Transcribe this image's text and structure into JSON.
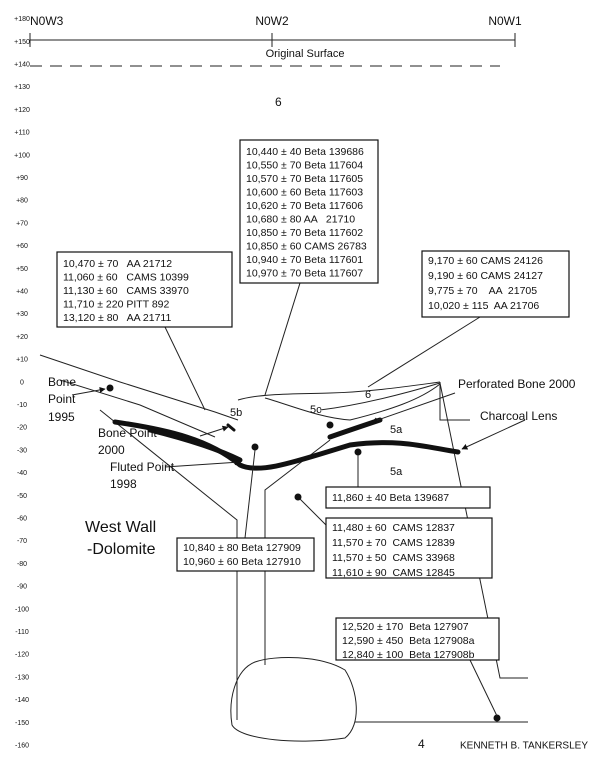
{
  "grid_labels": [
    "N0W3",
    "N0W2",
    "N0W1"
  ],
  "original_surface": "Original Surface",
  "depth_scale": [
    "+180",
    "+150",
    "+140",
    "+130",
    "+120",
    "+110",
    "+100",
    "+90",
    "+80",
    "+70",
    "+60",
    "+50",
    "+40",
    "+30",
    "+20",
    "+10",
    "0",
    "-10",
    "-20",
    "-30",
    "-40",
    "-50",
    "-60",
    "-70",
    "-80",
    "-90",
    "-100",
    "-110",
    "-120",
    "-130",
    "-140",
    "-150",
    "-160"
  ],
  "layers": {
    "top_6": "6",
    "layer_6": "6",
    "layer_5c": "5c",
    "layer_5b": "5b",
    "layer_5a_upper": "5a",
    "layer_5a_lower": "5a",
    "layer_4": "4"
  },
  "date_boxes": [
    [
      "10,440 ± 40 Beta 139686",
      "10,550 ± 70 Beta 117604",
      "10,570 ± 70 Beta 117605",
      "10,600 ± 60 Beta 117603",
      "10,620 ± 70 Beta 117606",
      "10,680 ± 80 AA   21710",
      "10,850 ± 70 Beta 117602",
      "10,850 ± 60 CAMS 26783",
      "10,940 ± 70 Beta 117601",
      "10,970 ± 70 Beta 117607"
    ],
    [
      "10,470 ± 70   AA 21712",
      "11,060 ± 60   CAMS 10399",
      "11,130 ± 60   CAMS 33970",
      "11,710 ± 220 PITT 892",
      "13,120 ± 80   AA 21711"
    ],
    [
      "9,170 ± 60 CAMS 24126",
      "9,190 ± 60 CAMS 24127",
      "9,775 ± 70    AA  21705",
      "10,020 ± 115  AA 21706"
    ],
    [
      "11,860 ± 40 Beta 139687"
    ],
    [
      "11,480 ± 60  CAMS 12837",
      "11,570 ± 70  CAMS 12839",
      "11,570 ± 50  CAMS 33968",
      "11,610 ± 90  CAMS 12845"
    ],
    [
      "10,840 ± 80 Beta 127909",
      "10,960 ± 60 Beta 127910"
    ],
    [
      "12,520 ± 170  Beta 127907",
      "12,590 ± 450  Beta 127908a",
      "12,840 ± 100  Beta 127908b"
    ]
  ],
  "annotations": {
    "bone_point_1995": [
      "Bone",
      "Point",
      "1995"
    ],
    "bone_point_2000": [
      "Bone Point",
      "2000"
    ],
    "fluted_point_1998": [
      "Fluted Point",
      "1998"
    ],
    "perforated_bone": "Perforated Bone 2000",
    "charcoal_lens": "Charcoal Lens",
    "west_wall": [
      "West Wall",
      "-Dolomite"
    ],
    "author": "KENNETH B. TANKERSLEY"
  }
}
